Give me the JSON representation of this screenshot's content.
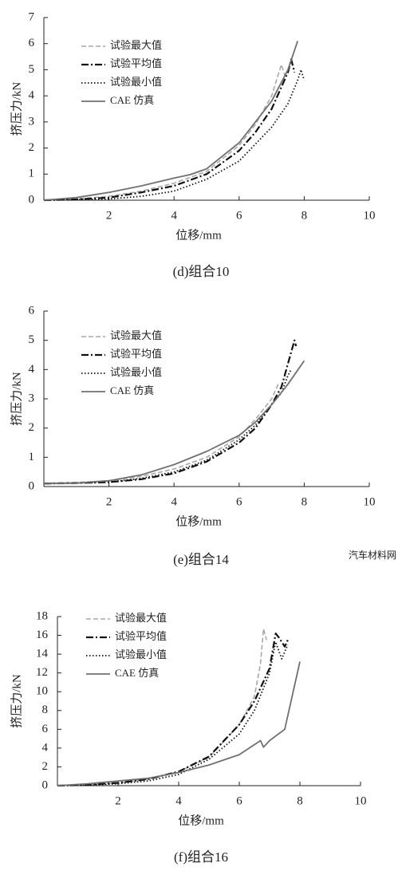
{
  "chart_data": [
    {
      "type": "line",
      "caption": "(d)组合10",
      "x_label": "位移/mm",
      "y_label": "挤压力/kN",
      "xlim": [
        0,
        10
      ],
      "ylim": [
        0,
        7
      ],
      "xticks": [
        2,
        4,
        6,
        8,
        10
      ],
      "yticks": [
        0,
        1,
        2,
        3,
        4,
        5,
        6,
        7
      ],
      "series": [
        {
          "name": "试验最大值",
          "color": "#a8a8a8",
          "dash": "dashed",
          "x": [
            0,
            1,
            2,
            3,
            4,
            5,
            6,
            6.5,
            7,
            7.3,
            7.4
          ],
          "values": [
            0,
            0.05,
            0.15,
            0.35,
            0.65,
            1.1,
            2.1,
            2.9,
            4.0,
            5.2,
            4.8
          ]
        },
        {
          "name": "试验平均值",
          "color": "#111111",
          "dash": "dashdot",
          "x": [
            0,
            1,
            2,
            3,
            4,
            5,
            6,
            6.5,
            7,
            7.5,
            7.6,
            7.7
          ],
          "values": [
            0,
            0.03,
            0.1,
            0.3,
            0.55,
            1.0,
            1.9,
            2.6,
            3.5,
            4.9,
            5.4,
            4.9
          ]
        },
        {
          "name": "试验最小值",
          "color": "#111111",
          "dash": "dotted",
          "x": [
            0,
            1,
            2,
            3,
            4,
            5,
            6,
            7,
            7.5,
            7.8,
            7.9,
            8.0
          ],
          "values": [
            0,
            0.02,
            0.05,
            0.15,
            0.35,
            0.8,
            1.5,
            2.8,
            3.7,
            4.6,
            5.0,
            4.6
          ]
        },
        {
          "name": "CAE 仿真",
          "color": "#707070",
          "dash": "solid",
          "x": [
            0,
            1,
            2,
            3,
            4,
            4.5,
            5,
            6,
            6.5,
            7,
            7.5,
            7.8
          ],
          "values": [
            0,
            0.1,
            0.3,
            0.55,
            0.85,
            0.98,
            1.2,
            2.2,
            3.0,
            3.8,
            5.0,
            6.1
          ]
        }
      ]
    },
    {
      "type": "line",
      "caption": "(e)组合14",
      "x_label": "位移/mm",
      "y_label": "挤压力/kN",
      "xlim": [
        0,
        10
      ],
      "ylim": [
        0,
        6
      ],
      "xticks": [
        2,
        4,
        6,
        8,
        10
      ],
      "yticks": [
        0,
        1,
        2,
        3,
        4,
        5,
        6
      ],
      "series": [
        {
          "name": "试验最大值",
          "color": "#a8a8a8",
          "dash": "dashed",
          "x": [
            0,
            1,
            2,
            3,
            4,
            5,
            6,
            6.5,
            7,
            7.2
          ],
          "values": [
            0.12,
            0.14,
            0.2,
            0.35,
            0.6,
            1.0,
            1.7,
            2.3,
            3.0,
            3.5
          ]
        },
        {
          "name": "试验平均值",
          "color": "#111111",
          "dash": "dashdot",
          "x": [
            0,
            1,
            2,
            3,
            4,
            5,
            6,
            6.5,
            7,
            7.3,
            7.5,
            7.7,
            7.75
          ],
          "values": [
            0.1,
            0.12,
            0.15,
            0.25,
            0.45,
            0.85,
            1.5,
            2.0,
            2.8,
            3.4,
            4.2,
            5.0,
            4.8
          ]
        },
        {
          "name": "试验最小值",
          "color": "#111111",
          "dash": "dotted",
          "x": [
            0,
            1,
            2,
            3,
            4,
            5,
            6,
            6.5,
            7,
            7.3,
            7.5,
            7.6
          ],
          "values": [
            0.1,
            0.12,
            0.15,
            0.28,
            0.5,
            0.9,
            1.6,
            2.1,
            2.8,
            3.2,
            3.8,
            4.0
          ]
        },
        {
          "name": "CAE 仿真",
          "color": "#707070",
          "dash": "solid",
          "x": [
            0,
            1,
            2,
            3,
            4,
            5,
            6,
            6.5,
            7,
            7.5,
            8
          ],
          "values": [
            0.1,
            0.12,
            0.2,
            0.4,
            0.75,
            1.2,
            1.75,
            2.2,
            2.8,
            3.5,
            4.3
          ]
        }
      ]
    },
    {
      "type": "line",
      "caption": "(f)组合16",
      "x_label": "位移/mm",
      "y_label": "挤压力/kN",
      "xlim": [
        0,
        10
      ],
      "ylim": [
        0,
        18
      ],
      "xticks": [
        2,
        4,
        6,
        8,
        10
      ],
      "yticks": [
        0,
        2,
        4,
        6,
        8,
        10,
        12,
        14,
        16,
        18
      ],
      "series": [
        {
          "name": "试验最大值",
          "color": "#a8a8a8",
          "dash": "dashed",
          "x": [
            0,
            1,
            2,
            3,
            4,
            5,
            6,
            6.5,
            6.7,
            6.8,
            6.9
          ],
          "values": [
            0,
            0.1,
            0.3,
            0.7,
            1.5,
            3,
            6.5,
            9.5,
            13,
            16.7,
            15.5
          ]
        },
        {
          "name": "试验平均值",
          "color": "#111111",
          "dash": "dashdot",
          "x": [
            0,
            1,
            2,
            3,
            4,
            5,
            6,
            6.5,
            7,
            7.2,
            7.3,
            7.5,
            7.6
          ],
          "values": [
            0,
            0.1,
            0.3,
            0.7,
            1.5,
            3.1,
            6.5,
            9,
            12.5,
            16.2,
            15.8,
            14.8,
            15.5
          ]
        },
        {
          "name": "试验最小值",
          "color": "#111111",
          "dash": "dotted",
          "x": [
            0,
            1,
            2,
            3,
            4,
            5,
            6,
            6.5,
            7,
            7.2,
            7.4,
            7.6
          ],
          "values": [
            0,
            0.05,
            0.2,
            0.5,
            1.2,
            2.8,
            5.5,
            8,
            12,
            15.3,
            13.5,
            15.0
          ]
        },
        {
          "name": "CAE 仿真",
          "color": "#707070",
          "dash": "solid",
          "x": [
            0,
            1,
            2,
            3,
            4,
            5,
            6,
            6.7,
            6.8,
            7,
            7.5,
            8
          ],
          "values": [
            0,
            0.2,
            0.5,
            0.8,
            1.4,
            2.2,
            3.3,
            4.8,
            4.1,
            4.8,
            6,
            13.2
          ]
        }
      ]
    }
  ],
  "watermark": "汽车材料网"
}
